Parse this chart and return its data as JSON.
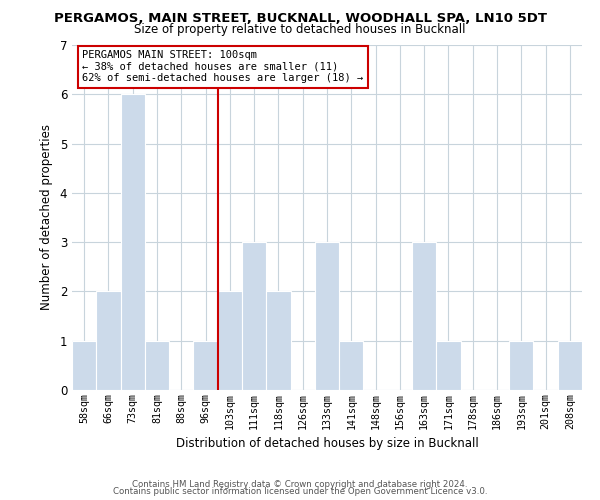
{
  "title": "PERGAMOS, MAIN STREET, BUCKNALL, WOODHALL SPA, LN10 5DT",
  "subtitle": "Size of property relative to detached houses in Bucknall",
  "xlabel": "Distribution of detached houses by size in Bucknall",
  "ylabel": "Number of detached properties",
  "bar_color": "#ccdaea",
  "bar_edge_color": "#ccdaea",
  "categories": [
    "58sqm",
    "66sqm",
    "73sqm",
    "81sqm",
    "88sqm",
    "96sqm",
    "103sqm",
    "111sqm",
    "118sqm",
    "126sqm",
    "133sqm",
    "141sqm",
    "148sqm",
    "156sqm",
    "163sqm",
    "171sqm",
    "178sqm",
    "186sqm",
    "193sqm",
    "201sqm",
    "208sqm"
  ],
  "values": [
    1,
    2,
    6,
    1,
    0,
    1,
    2,
    3,
    2,
    0,
    3,
    1,
    0,
    0,
    3,
    1,
    0,
    0,
    1,
    0,
    1
  ],
  "ylim": [
    0,
    7
  ],
  "yticks": [
    0,
    1,
    2,
    3,
    4,
    5,
    6,
    7
  ],
  "vline_index": 6,
  "vline_color": "#cc0000",
  "annotation_text_line1": "PERGAMOS MAIN STREET: 100sqm",
  "annotation_text_line2": "← 38% of detached houses are smaller (11)",
  "annotation_text_line3": "62% of semi-detached houses are larger (18) →",
  "annotation_box_color": "#ffffff",
  "annotation_border_color": "#cc0000",
  "footer_line1": "Contains HM Land Registry data © Crown copyright and database right 2024.",
  "footer_line2": "Contains public sector information licensed under the Open Government Licence v3.0.",
  "background_color": "#ffffff",
  "grid_color": "#c8d4dc"
}
